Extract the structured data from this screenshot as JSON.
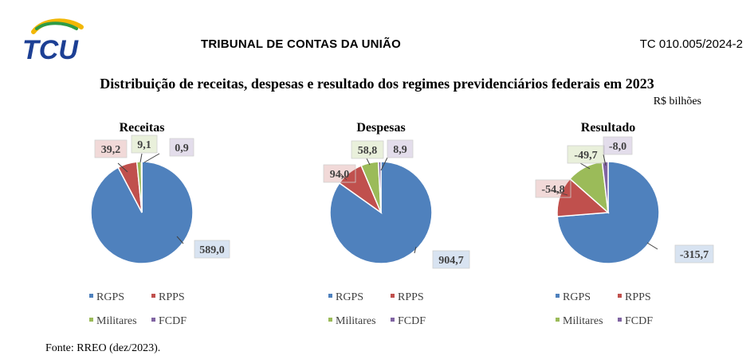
{
  "header": {
    "org_name": "TRIBUNAL DE CONTAS DA UNIÃO",
    "process_number": "TC 010.005/2024-2",
    "logo_text": "TCU"
  },
  "figure": {
    "title": "Distribuição de receitas, despesas e resultado dos regimes previdenciários federais em 2023",
    "unit": "R$ bilhões",
    "source": "Fonte: RREO (dez/2023)."
  },
  "colors": {
    "RGPS": "#4f81bd",
    "RPPS": "#c0504d",
    "Militares": "#9bbb59",
    "FCDF": "#8064a2"
  },
  "chart_data": [
    {
      "type": "pie",
      "title": "Receitas",
      "categories": [
        "RGPS",
        "RPPS",
        "Militares",
        "FCDF"
      ],
      "values": [
        589.0,
        39.2,
        9.1,
        0.9
      ],
      "labels": [
        "589,0",
        "39,2",
        "9,1",
        "0,9"
      ],
      "legend": "bottom"
    },
    {
      "type": "pie",
      "title": "Despesas",
      "categories": [
        "RGPS",
        "RPPS",
        "Militares",
        "FCDF"
      ],
      "values": [
        904.7,
        94.0,
        58.8,
        8.9
      ],
      "labels": [
        "904,7",
        "94,0",
        "58,8",
        "8,9"
      ],
      "legend": "bottom"
    },
    {
      "type": "pie",
      "title": "Resultado",
      "categories": [
        "RGPS",
        "RPPS",
        "Militares",
        "FCDF"
      ],
      "values": [
        -315.7,
        -54.8,
        -49.7,
        -8.0
      ],
      "labels": [
        "-315,7",
        "-54,8",
        "-49,7",
        "-8,0"
      ],
      "legend": "bottom"
    }
  ]
}
